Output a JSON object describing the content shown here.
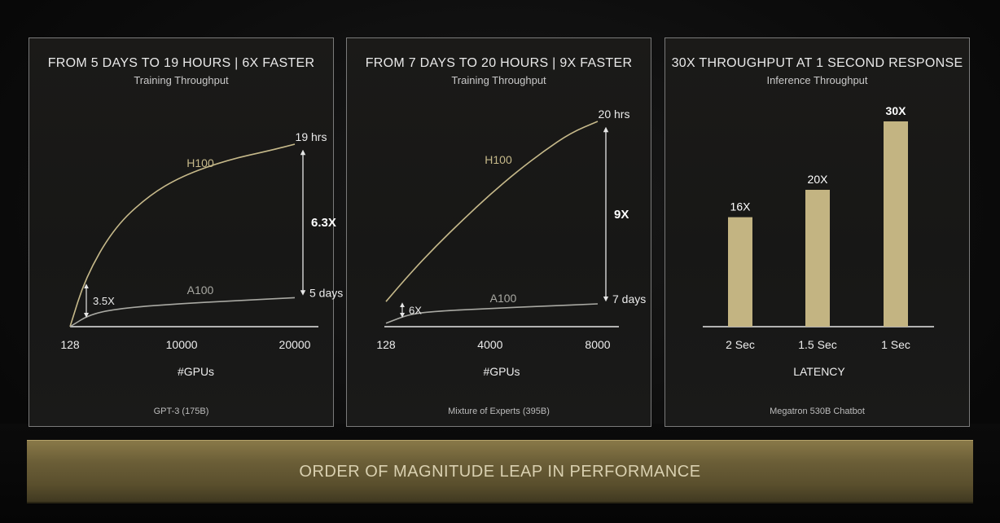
{
  "banner": {
    "text": "ORDER OF MAGNITUDE LEAP IN PERFORMANCE"
  },
  "colors": {
    "h100_line": "#c6b98a",
    "a100_line": "#a9a9a3",
    "bar": "#c3b482",
    "axis": "#e6e6e6",
    "banner": "#6b5e37"
  },
  "chart_data": [
    {
      "type": "line",
      "title": "FROM 5 DAYS TO 19 HOURS  |  6X FASTER",
      "subtitle": "Training Throughput",
      "xlabel": "#GPUs",
      "caption": "GPT-3 (175B)",
      "x_ticks": [
        128,
        10000,
        20000
      ],
      "x_tick_labels": [
        "128",
        "10000",
        "20000"
      ],
      "xlim": [
        128,
        20000
      ],
      "ylim": [
        0,
        6.3
      ],
      "series": [
        {
          "name": "H100",
          "x": [
            128,
            1500,
            4000,
            7000,
            10000,
            14000,
            18000,
            20000
          ],
          "y": [
            0,
            1.7,
            3.4,
            4.5,
            5.2,
            5.75,
            6.1,
            6.3
          ]
        },
        {
          "name": "A100",
          "x": [
            128,
            2000,
            5000,
            10000,
            15000,
            20000
          ],
          "y": [
            0,
            0.45,
            0.65,
            0.8,
            0.9,
            1.0
          ]
        }
      ],
      "annotations": {
        "start_gap": "3.5X",
        "end_gap": "6.3X",
        "end_top": "19 hrs",
        "end_bottom": "5 days"
      }
    },
    {
      "type": "line",
      "title": "FROM 7 DAYS TO 20 HOURS  |  9X FASTER",
      "subtitle": "Training Throughput",
      "xlabel": "#GPUs",
      "caption": "Mixture of Experts (395B)",
      "x_ticks": [
        128,
        4000,
        8000
      ],
      "x_tick_labels": [
        "128",
        "4000",
        "8000"
      ],
      "xlim": [
        128,
        8000
      ],
      "ylim": [
        0,
        9
      ],
      "series": [
        {
          "name": "H100",
          "x": [
            128,
            1000,
            2000,
            3000,
            4000,
            5000,
            6000,
            7000,
            8000
          ],
          "y": [
            1.1,
            2.3,
            3.55,
            4.7,
            5.8,
            6.8,
            7.7,
            8.5,
            9.0
          ]
        },
        {
          "name": "A100",
          "x": [
            128,
            1000,
            2000,
            4000,
            6000,
            8000
          ],
          "y": [
            0.15,
            0.55,
            0.68,
            0.8,
            0.9,
            1.0
          ]
        }
      ],
      "annotations": {
        "start_gap": "6X",
        "end_gap": "9X",
        "end_top": "20 hrs",
        "end_bottom": "7 days"
      }
    },
    {
      "type": "bar",
      "title": "30X THROUGHPUT AT 1 SECOND RESPONSE",
      "subtitle": "Inference Throughput",
      "xlabel": "LATENCY",
      "caption": "Megatron 530B Chatbot",
      "categories": [
        "2 Sec",
        "1.5 Sec",
        "1 Sec"
      ],
      "values": [
        16,
        20,
        30
      ],
      "value_labels": [
        "16X",
        "20X",
        "30X"
      ],
      "ylim": [
        0,
        30
      ]
    }
  ]
}
